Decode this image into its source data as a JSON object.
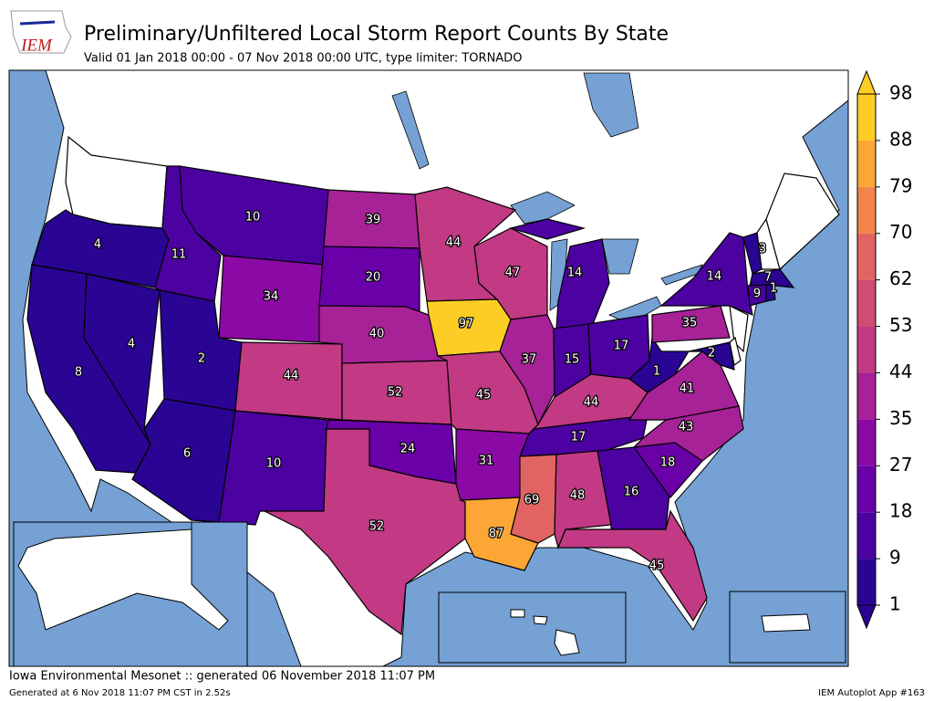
{
  "header": {
    "logo_text": "IEM",
    "title": "Preliminary/Unfiltered Local Storm Report Counts By State",
    "subtitle": "Valid 01 Jan 2018 00:00 - 07 Nov 2018 00:00 UTC, type limiter: TORNADO"
  },
  "map": {
    "values": [
      4,
      8,
      4,
      11,
      10,
      34,
      2,
      6,
      44,
      10,
      39,
      20,
      40,
      52,
      24,
      52,
      44,
      97,
      45,
      31,
      87,
      47,
      37,
      14,
      15,
      17,
      44,
      17,
      69,
      48,
      16,
      45,
      18,
      43,
      41,
      1,
      35,
      14,
      2,
      3,
      7,
      9,
      1
    ]
  },
  "colorbar": {
    "ticks": [
      1,
      9,
      18,
      27,
      35,
      44,
      53,
      62,
      70,
      79,
      88,
      98
    ],
    "colors": [
      "#2a0593",
      "#4c02a1",
      "#6a00a8",
      "#8b0aa5",
      "#a72197",
      "#c13a83",
      "#cf4c74",
      "#e16462",
      "#f2844b",
      "#fca636",
      "#fcce25"
    ]
  },
  "footer": {
    "left": "Iowa Environmental Mesonet :: generated 06 November 2018 11:07 PM",
    "generated": "Generated at 6 Nov 2018 11:07 PM CST in 2.52s",
    "app": "IEM Autoplot App #163"
  }
}
